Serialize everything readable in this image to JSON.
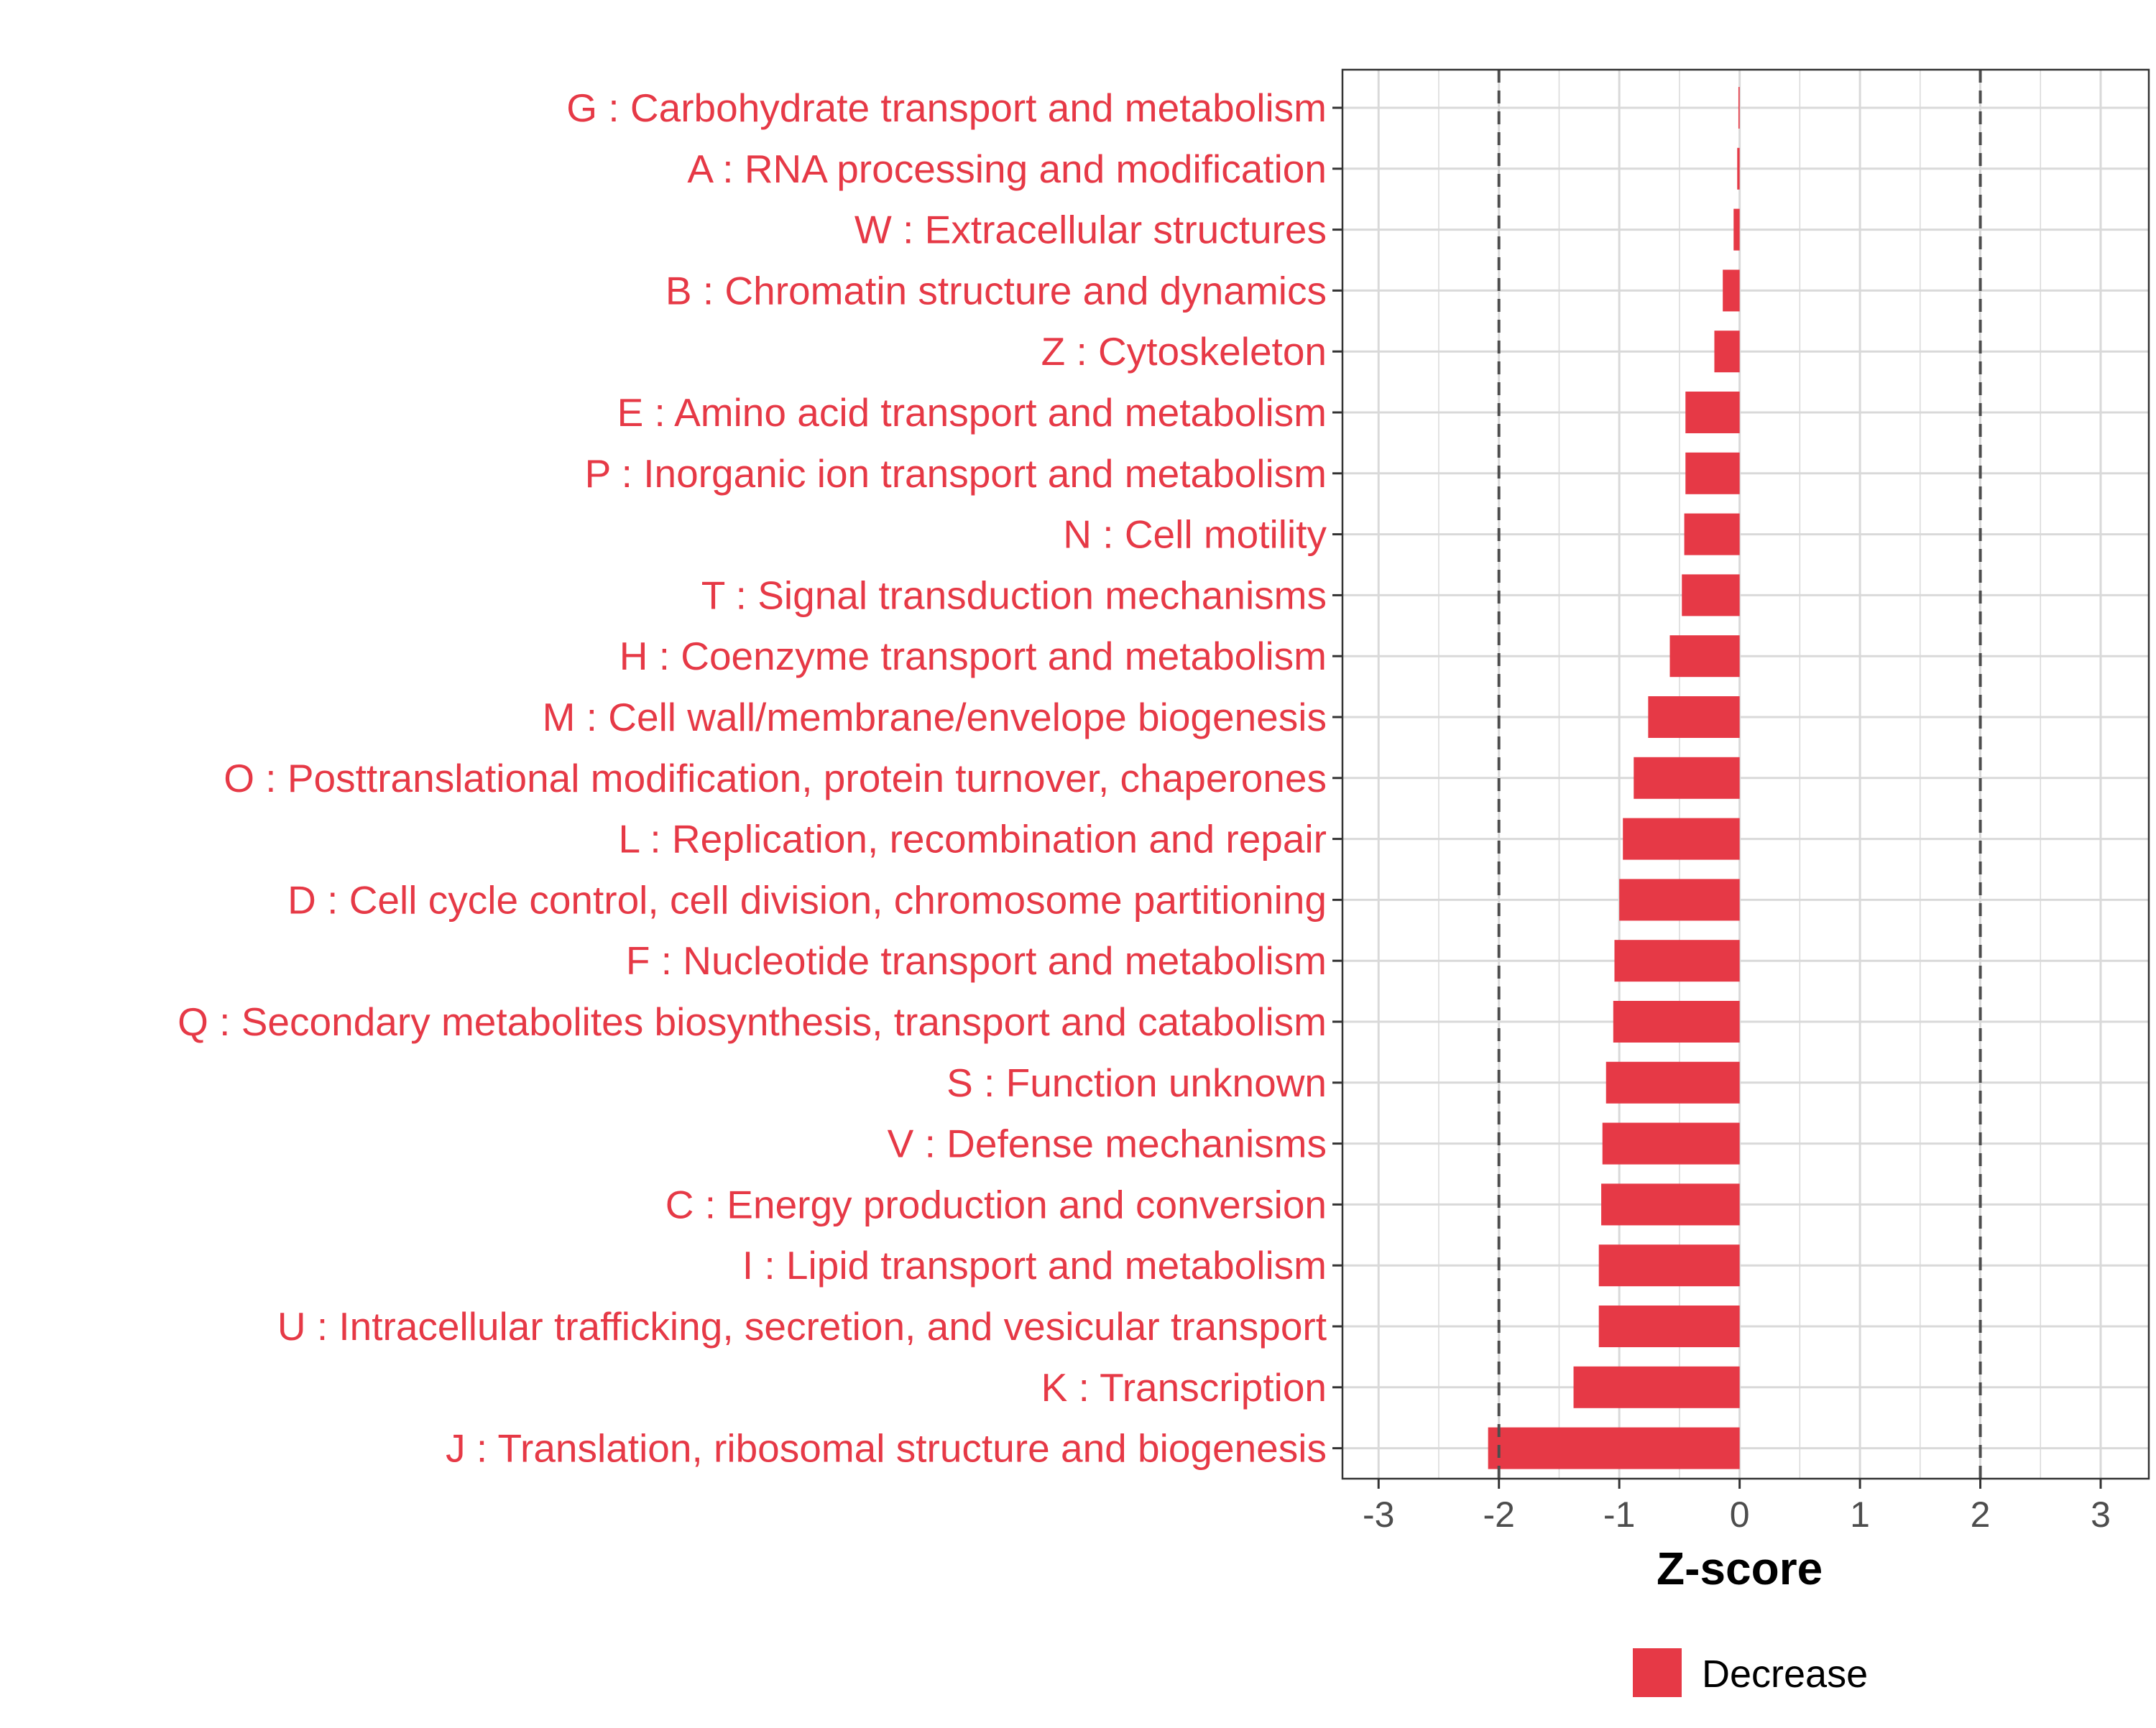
{
  "chart_data": {
    "type": "bar",
    "orientation": "horizontal",
    "categories": [
      "G : Carbohydrate transport and metabolism",
      "A : RNA processing and modification",
      "W : Extracellular structures",
      "B : Chromatin structure and dynamics",
      "Z : Cytoskeleton",
      "E : Amino acid transport and metabolism",
      "P : Inorganic ion transport and metabolism",
      "N : Cell motility",
      "T : Signal transduction mechanisms",
      "H : Coenzyme transport and metabolism",
      "M : Cell wall/membrane/envelope biogenesis",
      "O : Posttranslational modification, protein turnover, chaperones",
      "L : Replication, recombination and repair",
      "D : Cell cycle control, cell division, chromosome partitioning",
      "F : Nucleotide transport and metabolism",
      "Q : Secondary metabolites biosynthesis, transport and catabolism",
      "S : Function unknown",
      "V : Defense mechanisms",
      "C : Energy production and conversion",
      "I : Lipid transport and metabolism",
      "U : Intracellular trafficking, secretion, and vesicular transport",
      "K : Transcription",
      "J : Translation, ribosomal structure and biogenesis"
    ],
    "series": [
      {
        "name": "Decrease",
        "values": [
          -0.01,
          -0.02,
          -0.05,
          -0.14,
          -0.21,
          -0.45,
          -0.45,
          -0.46,
          -0.48,
          -0.58,
          -0.76,
          -0.88,
          -0.97,
          -1.0,
          -1.04,
          -1.05,
          -1.11,
          -1.14,
          -1.15,
          -1.17,
          -1.17,
          -1.38,
          -2.09
        ]
      }
    ],
    "xlabel": "Z-score",
    "xlim": [
      -3.3,
      3.4
    ],
    "xticks": [
      -3,
      -2,
      -1,
      0,
      1,
      2,
      3
    ],
    "xtick_labels": [
      "-3",
      "-2",
      "-1",
      "0",
      "1",
      "2",
      "3"
    ],
    "reference_lines": [
      -2,
      2
    ],
    "grid": true,
    "legend_position": "bottom",
    "legend_entries": [
      "Decrease"
    ],
    "colors": {
      "decrease": "#E63946",
      "reference_line": "#4d4d4d",
      "grid": "#d9d9d9",
      "panel_border": "#333333"
    }
  }
}
